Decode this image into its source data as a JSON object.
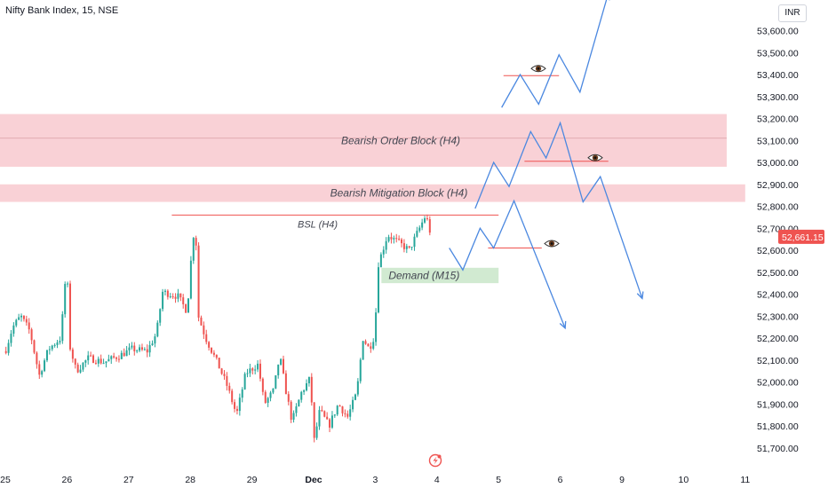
{
  "header": {
    "title": "Nifty Bank Index, 15, NSE",
    "currency": "INR"
  },
  "colors": {
    "up": "#26a69a",
    "down": "#ef5350",
    "zone_red": "#f8c9cf",
    "zone_green": "#cfe9cf",
    "projection": "#4b88e0",
    "level_line": "#ef5350",
    "price_badge": "#ef5350"
  },
  "chart_data": {
    "type": "candlestick",
    "symbol": "Nifty Bank Index",
    "timeframe": "15",
    "exchange": "NSE",
    "last_price": 52661.15,
    "last_price_label": "52,661.15",
    "y_range": [
      51650,
      53800
    ],
    "y_ticks": [
      {
        "value": 53600,
        "label": "53,600.00"
      },
      {
        "value": 53500,
        "label": "53,500.00"
      },
      {
        "value": 53400,
        "label": "53,400.00"
      },
      {
        "value": 53300,
        "label": "53,300.00"
      },
      {
        "value": 53200,
        "label": "53,200.00"
      },
      {
        "value": 53100,
        "label": "53,100.00"
      },
      {
        "value": 53000,
        "label": "53,000.00"
      },
      {
        "value": 52900,
        "label": "52,900.00"
      },
      {
        "value": 52800,
        "label": "52,800.00"
      },
      {
        "value": 52700,
        "label": "52,700.00"
      },
      {
        "value": 52600,
        "label": "52,600.00"
      },
      {
        "value": 52500,
        "label": "52,500.00"
      },
      {
        "value": 52400,
        "label": "52,400.00"
      },
      {
        "value": 52300,
        "label": "52,300.00"
      },
      {
        "value": 52200,
        "label": "52,200.00"
      },
      {
        "value": 52100,
        "label": "52,100.00"
      },
      {
        "value": 52000,
        "label": "52,000.00"
      },
      {
        "value": 51900,
        "label": "51,900.00"
      },
      {
        "value": 51800,
        "label": "51,800.00"
      },
      {
        "value": 51700,
        "label": "51,700.00"
      }
    ],
    "x_ticks": [
      {
        "day": 0,
        "label": "25"
      },
      {
        "day": 1,
        "label": "26"
      },
      {
        "day": 2,
        "label": "27"
      },
      {
        "day": 3,
        "label": "28"
      },
      {
        "day": 4,
        "label": "29"
      },
      {
        "day": 5,
        "label": "Dec"
      },
      {
        "day": 6,
        "label": "3"
      },
      {
        "day": 7,
        "label": "4"
      },
      {
        "day": 8,
        "label": "5"
      },
      {
        "day": 9,
        "label": "6"
      },
      {
        "day": 10,
        "label": "9"
      },
      {
        "day": 11,
        "label": "10"
      },
      {
        "day": 12,
        "label": "11"
      }
    ],
    "path_anchors": [
      [
        0.0,
        52140
      ],
      [
        0.12,
        52250
      ],
      [
        0.25,
        52300
      ],
      [
        0.4,
        52230
      ],
      [
        0.55,
        52030
      ],
      [
        0.7,
        52150
      ],
      [
        0.9,
        52200
      ],
      [
        1.0,
        52560
      ],
      [
        1.03,
        52180
      ],
      [
        1.15,
        52050
      ],
      [
        1.35,
        52110
      ],
      [
        1.6,
        52090
      ],
      [
        1.85,
        52120
      ],
      [
        2.05,
        52150
      ],
      [
        2.3,
        52140
      ],
      [
        2.45,
        52220
      ],
      [
        2.55,
        52410
      ],
      [
        2.8,
        52390
      ],
      [
        2.95,
        52320
      ],
      [
        3.0,
        52520
      ],
      [
        3.08,
        52750
      ],
      [
        3.13,
        52300
      ],
      [
        3.25,
        52200
      ],
      [
        3.45,
        52080
      ],
      [
        3.6,
        51980
      ],
      [
        3.75,
        51850
      ],
      [
        3.9,
        52040
      ],
      [
        4.1,
        52080
      ],
      [
        4.2,
        51900
      ],
      [
        4.35,
        51960
      ],
      [
        4.45,
        52120
      ],
      [
        4.55,
        51960
      ],
      [
        4.65,
        51820
      ],
      [
        4.8,
        51950
      ],
      [
        4.95,
        52020
      ],
      [
        5.0,
        51720
      ],
      [
        5.1,
        51870
      ],
      [
        5.25,
        51800
      ],
      [
        5.4,
        51900
      ],
      [
        5.55,
        51840
      ],
      [
        5.7,
        51950
      ],
      [
        5.8,
        52200
      ],
      [
        5.9,
        52150
      ],
      [
        6.0,
        52220
      ],
      [
        6.03,
        52520
      ],
      [
        6.12,
        52600
      ],
      [
        6.2,
        52670
      ],
      [
        6.4,
        52630
      ],
      [
        6.55,
        52600
      ],
      [
        6.7,
        52690
      ],
      [
        6.82,
        52760
      ],
      [
        6.92,
        52650
      ]
    ],
    "zones": [
      {
        "label": "Bearish Order Block  (H4)",
        "top": 53220,
        "bottom": 52980,
        "x0": -0.1,
        "x1": 11.7,
        "midline": 53110
      },
      {
        "label": "Bearish Mitigation Block (H4)",
        "top": 52900,
        "bottom": 52820,
        "x0": -0.1,
        "x1": 12.0
      },
      {
        "label": "Demand (M15)",
        "top": 52520,
        "bottom": 52450,
        "x0": 6.1,
        "x1": 8.0,
        "green": true
      }
    ],
    "levels": [
      {
        "label": "BSL (H4)",
        "price": 52760,
        "x0": 2.7,
        "x1": 8.0
      },
      {
        "label": "",
        "price": 53395,
        "x0": 8.08,
        "x1": 8.98,
        "eye": true
      },
      {
        "label": "",
        "price": 53005,
        "x0": 8.42,
        "x1": 9.78,
        "eye": true
      },
      {
        "label": "",
        "price": 52610,
        "x0": 7.83,
        "x1": 8.7,
        "eye": true
      }
    ],
    "projections": [
      {
        "name": "upper",
        "points": [
          [
            8.05,
            53250
          ],
          [
            8.35,
            53400
          ],
          [
            8.65,
            53265
          ],
          [
            8.98,
            53490
          ],
          [
            9.32,
            53320
          ],
          [
            9.78,
            53770
          ]
        ]
      },
      {
        "name": "middle",
        "points": [
          [
            7.62,
            52790
          ],
          [
            7.92,
            53000
          ],
          [
            8.17,
            52890
          ],
          [
            8.52,
            53140
          ],
          [
            8.77,
            53020
          ],
          [
            9.0,
            53180
          ],
          [
            9.37,
            52820
          ],
          [
            9.65,
            52935
          ],
          [
            10.33,
            52380
          ]
        ]
      },
      {
        "name": "lower",
        "points": [
          [
            7.2,
            52610
          ],
          [
            7.42,
            52510
          ],
          [
            7.7,
            52700
          ],
          [
            7.92,
            52610
          ],
          [
            8.25,
            52825
          ],
          [
            9.08,
            52245
          ]
        ]
      }
    ]
  }
}
